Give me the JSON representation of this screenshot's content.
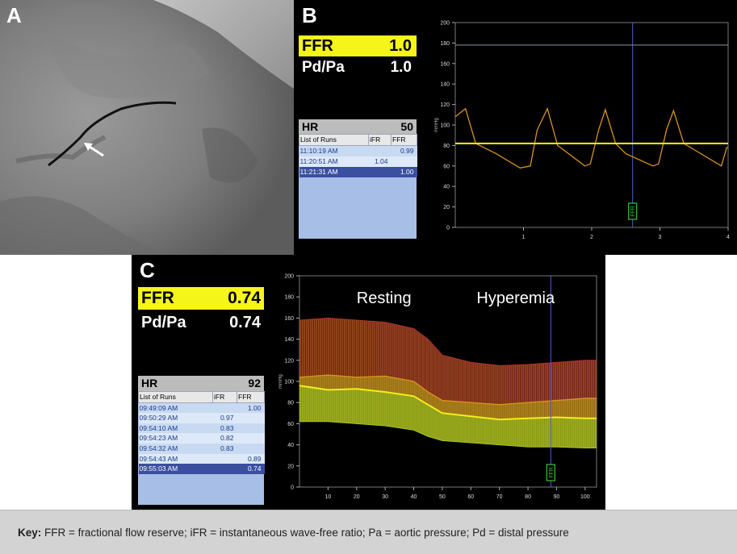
{
  "panel_a": {
    "label": "A"
  },
  "panel_b": {
    "label": "B",
    "ffr_label": "FFR",
    "ffr_value": "1.0",
    "pdpa_label": "Pd/Pa",
    "pdpa_value": "1.0",
    "hr_label": "HR",
    "hr_value": "50",
    "runs_headers": [
      "List of Runs",
      "iFR",
      "FFR"
    ],
    "runs": [
      {
        "time": "11:10:19 AM",
        "ifr": "",
        "ffr": "0.99"
      },
      {
        "time": "11:20:51 AM",
        "ifr": "1.04",
        "ffr": ""
      },
      {
        "time": "11:21:31 AM",
        "ifr": "",
        "ffr": "1.00"
      }
    ],
    "marker": "FFR"
  },
  "panel_c": {
    "label": "C",
    "ffr_label": "FFR",
    "ffr_value": "0.74",
    "pdpa_label": "Pd/Pa",
    "pdpa_value": "0.74",
    "hr_label": "HR",
    "hr_value": "92",
    "runs_headers": [
      "List of Runs",
      "iFR",
      "FFR"
    ],
    "runs": [
      {
        "time": "09:49:09 AM",
        "ifr": "",
        "ffr": "1.00"
      },
      {
        "time": "09:50:29 AM",
        "ifr": "0.97",
        "ffr": ""
      },
      {
        "time": "09:54:10 AM",
        "ifr": "0.83",
        "ffr": ""
      },
      {
        "time": "09:54:23 AM",
        "ifr": "0.82",
        "ffr": ""
      },
      {
        "time": "09:54:32 AM",
        "ifr": "0.83",
        "ffr": ""
      },
      {
        "time": "09:54:43 AM",
        "ifr": "",
        "ffr": "0.89"
      },
      {
        "time": "09:55:03 AM",
        "ifr": "",
        "ffr": "0.74"
      }
    ],
    "annotation_left": "Resting",
    "annotation_right": "Hyperemia",
    "marker": "FFR"
  },
  "colors": {
    "ffr_highlight": "#f5f51a",
    "pd_trace": "#d8931e",
    "pa_mean_trace": "#f2ee1a",
    "aortic_trace": "#8a93a6",
    "runs_background": "#a7bfe6",
    "runs_selected": "#3a4fa0"
  },
  "chart_data": [
    {
      "type": "line",
      "panel": "B",
      "title": "",
      "xlabel": "",
      "ylabel": "mmHg",
      "x_ticks": [
        1,
        2,
        3,
        4
      ],
      "y_ticks": [
        0,
        20,
        40,
        60,
        80,
        100,
        120,
        140,
        160,
        180,
        200
      ],
      "ylim": [
        0,
        200
      ],
      "xlim": [
        0,
        4
      ],
      "marker_x": 2.6,
      "series": [
        {
          "values_description": "upper trace",
          "x": [
            0,
            4
          ],
          "y": [
            178,
            178
          ]
        },
        {
          "x": [
            0,
            0.15,
            0.3,
            0.6,
            0.95,
            1.1,
            1.2,
            1.35,
            1.5,
            1.9,
            1.98,
            2.1,
            2.2,
            2.35,
            2.5,
            2.9,
            2.98,
            3.1,
            3.2,
            3.35,
            3.5,
            3.9,
            3.98,
            4.0
          ],
          "y": [
            108,
            116,
            82,
            72,
            58,
            60,
            95,
            116,
            80,
            60,
            62,
            95,
            115,
            82,
            72,
            60,
            62,
            96,
            114,
            82,
            76,
            60,
            78,
            78
          ]
        },
        {
          "x": [
            0,
            4
          ],
          "y": [
            82,
            82
          ]
        }
      ]
    },
    {
      "type": "line",
      "panel": "C",
      "title": "",
      "xlabel": "",
      "ylabel": "mmHg",
      "x_ticks": [
        10,
        20,
        30,
        40,
        50,
        60,
        70,
        80,
        90,
        100
      ],
      "y_ticks": [
        0,
        20,
        40,
        60,
        80,
        100,
        120,
        140,
        160,
        180,
        200
      ],
      "ylim": [
        0,
        200
      ],
      "xlim": [
        0,
        104
      ],
      "marker_x": 88,
      "series": [
        {
          "x": [
            0,
            10,
            20,
            30,
            40,
            45,
            50,
            60,
            70,
            80,
            90,
            100,
            104
          ],
          "y": [
            158,
            160,
            158,
            156,
            150,
            140,
            125,
            118,
            115,
            116,
            118,
            120,
            120
          ]
        },
        {
          "x": [
            0,
            10,
            20,
            30,
            40,
            45,
            50,
            60,
            70,
            80,
            90,
            100,
            104
          ],
          "y": [
            104,
            106,
            104,
            105,
            100,
            90,
            82,
            80,
            78,
            80,
            82,
            84,
            84
          ]
        },
        {
          "x": [
            0,
            10,
            20,
            30,
            40,
            45,
            50,
            60,
            70,
            80,
            90,
            100,
            104
          ],
          "y": [
            96,
            92,
            93,
            90,
            86,
            78,
            70,
            67,
            64,
            65,
            66,
            65,
            65
          ]
        },
        {
          "x": [
            0,
            10,
            20,
            30,
            40,
            45,
            50,
            60,
            70,
            80,
            90,
            100,
            104
          ],
          "y": [
            62,
            62,
            60,
            58,
            54,
            48,
            44,
            42,
            40,
            38,
            38,
            37,
            37
          ]
        }
      ]
    }
  ],
  "key": {
    "bold": "Key:",
    "text": " FFR = fractional flow reserve; iFR = instantaneous wave-free ratio; Pa = aortic pressure; Pd = distal pressure"
  }
}
